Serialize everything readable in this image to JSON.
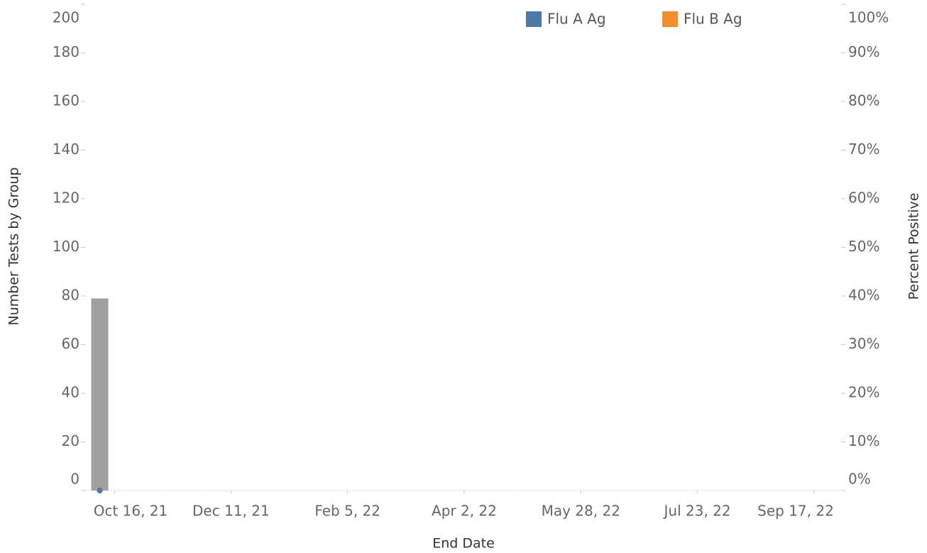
{
  "chart_data": {
    "type": "bar-line",
    "x_label": "End Date",
    "y_label": "Number Tests by Group",
    "y2_label": "Percent Positive",
    "x": [
      "2021-10-09"
    ],
    "series": [
      {
        "type": "bar",
        "color": "#a0a0a0",
        "values": [
          79
        ]
      },
      {
        "name": "Flu A Ag",
        "type": "line",
        "axis": "y2",
        "color": "#4e79a7",
        "values": [
          0
        ]
      },
      {
        "name": "Flu B Ag",
        "type": "line",
        "axis": "y2",
        "color": "#f28e2b",
        "values": [
          0
        ]
      }
    ],
    "xlim": [
      "2021-10-02",
      "2022-09-30"
    ],
    "xticks": [
      {
        "value": "2021-10-16",
        "label": "Oct 16, 21"
      },
      {
        "value": "2021-12-11",
        "label": "Dec 11, 21"
      },
      {
        "value": "2022-02-05",
        "label": "Feb 5, 22"
      },
      {
        "value": "2022-04-02",
        "label": "Apr 2, 22"
      },
      {
        "value": "2022-05-28",
        "label": "May 28, 22"
      },
      {
        "value": "2022-07-23",
        "label": "Jul 23, 22"
      },
      {
        "value": "2022-09-17",
        "label": "Sep 17, 22"
      }
    ],
    "ylim": [
      0,
      200
    ],
    "yticks": [
      0,
      20,
      40,
      60,
      80,
      100,
      120,
      140,
      160,
      180,
      200
    ],
    "y2lim": [
      0,
      100
    ],
    "y2ticks": [
      {
        "value": 0,
        "label": "0%"
      },
      {
        "value": 10,
        "label": "10%"
      },
      {
        "value": 20,
        "label": "20%"
      },
      {
        "value": 30,
        "label": "30%"
      },
      {
        "value": 40,
        "label": "40%"
      },
      {
        "value": 50,
        "label": "50%"
      },
      {
        "value": 60,
        "label": "60%"
      },
      {
        "value": 70,
        "label": "70%"
      },
      {
        "value": 80,
        "label": "80%"
      },
      {
        "value": 90,
        "label": "90%"
      },
      {
        "value": 100,
        "label": "100%"
      }
    ],
    "legend": "top-right"
  }
}
